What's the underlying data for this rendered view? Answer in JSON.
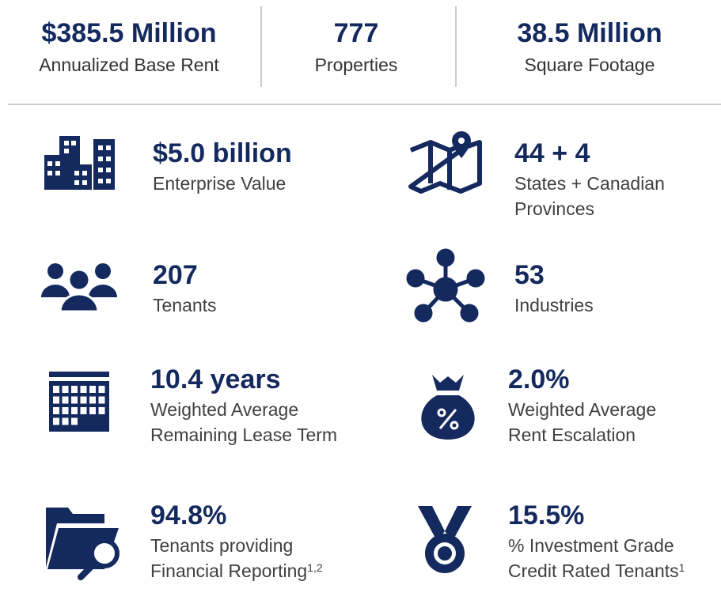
{
  "top": [
    {
      "value": "$385.5 Million",
      "label": "Annualized Base Rent"
    },
    {
      "value": "777",
      "label": "Properties"
    },
    {
      "value": "38.5 Million",
      "label": "Square Footage"
    }
  ],
  "items": [
    {
      "value": "$5.0 billion",
      "label": [
        "Enterprise Value"
      ]
    },
    {
      "value": "44 + 4",
      "label": [
        "States + Canadian",
        "Provinces"
      ]
    },
    {
      "value": "207",
      "label": [
        "Tenants"
      ]
    },
    {
      "value": "53",
      "label": [
        "Industries"
      ]
    },
    {
      "value": "10.4 years",
      "label": [
        "Weighted Average",
        "Remaining Lease Term"
      ]
    },
    {
      "value": "2.0%",
      "label": [
        "Weighted Average",
        "Rent Escalation"
      ]
    },
    {
      "value": "94.8%",
      "label": [
        "Tenants providing",
        "Financial Reporting"
      ],
      "note": "1,2"
    },
    {
      "value": "15.5%",
      "label": [
        "% Investment Grade",
        "Credit Rated Tenants"
      ],
      "note": "1"
    }
  ]
}
